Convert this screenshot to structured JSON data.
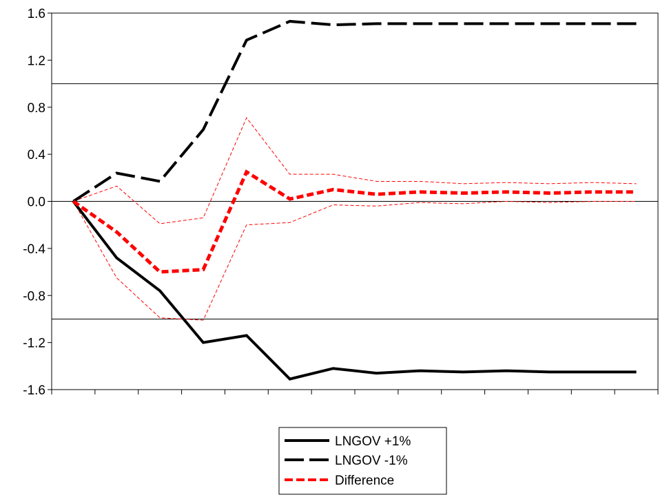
{
  "chart_data": {
    "type": "line",
    "title": "",
    "xlabel": "",
    "ylabel": "",
    "ylim": [
      -1.6,
      1.6
    ],
    "yticks": [
      "1.6",
      "1.2",
      "0.8",
      "0.4",
      "0.0",
      "-0.4",
      "-0.8",
      "-1.2",
      "-1.6"
    ],
    "ytick_values": [
      1.6,
      1.2,
      0.8,
      0.4,
      0.0,
      -0.4,
      -0.8,
      -1.2,
      -1.6
    ],
    "x": [
      0,
      1,
      2,
      3,
      4,
      5,
      6,
      7,
      8,
      9,
      10,
      11,
      12,
      13
    ],
    "xlim": [
      -0.5,
      13.5
    ],
    "reference_lines": [
      1.0,
      0.0,
      -1.0
    ],
    "grid": false,
    "legend_position": "bottom-center",
    "series": [
      {
        "name": "LNGOV +1%",
        "style": "solid",
        "color": "#000000",
        "values": [
          0.0,
          -0.48,
          -0.76,
          -1.2,
          -1.14,
          -1.51,
          -1.42,
          -1.46,
          -1.44,
          -1.45,
          -1.44,
          -1.45,
          -1.45,
          -1.45
        ]
      },
      {
        "name": "LNGOV -1%",
        "style": "long-dash",
        "color": "#000000",
        "values": [
          0.0,
          0.24,
          0.17,
          0.61,
          1.37,
          1.53,
          1.5,
          1.51,
          1.51,
          1.51,
          1.51,
          1.51,
          1.51,
          1.51
        ]
      },
      {
        "name": "Difference",
        "style": "short-dash",
        "color": "#ff0000",
        "values": [
          0.0,
          -0.26,
          -0.6,
          -0.58,
          0.25,
          0.02,
          0.1,
          0.06,
          0.08,
          0.07,
          0.08,
          0.07,
          0.08,
          0.08
        ]
      }
    ],
    "confidence_bands": {
      "color": "#ff0000",
      "upper": [
        0.0,
        0.13,
        -0.19,
        -0.14,
        0.71,
        0.23,
        0.23,
        0.17,
        0.17,
        0.15,
        0.16,
        0.15,
        0.16,
        0.15
      ],
      "lower": [
        0.0,
        -0.65,
        -0.99,
        -1.01,
        -0.2,
        -0.18,
        -0.03,
        -0.04,
        -0.01,
        -0.02,
        0.0,
        -0.01,
        0.0,
        0.0
      ]
    }
  }
}
